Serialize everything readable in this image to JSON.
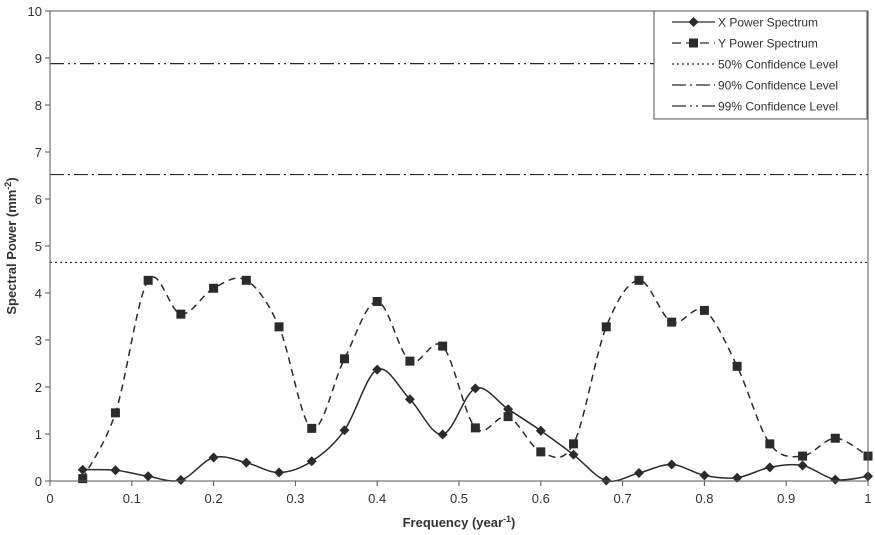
{
  "chart_data": {
    "type": "line",
    "title": "",
    "xlabel": "Frequency (year",
    "xlabel_sup": "-1",
    "xlabel_close": ")",
    "ylabel": "Spectral Power (mm",
    "ylabel_sup": "-2",
    "ylabel_close": ")",
    "xlim": [
      0,
      1
    ],
    "ylim": [
      0,
      10
    ],
    "x_ticks": [
      "0",
      "0.1",
      "0.2",
      "0.3",
      "0.4",
      "0.5",
      "0.6",
      "0.7",
      "0.8",
      "0.9",
      "1"
    ],
    "y_ticks": [
      "0",
      "1",
      "2",
      "3",
      "4",
      "5",
      "6",
      "7",
      "8",
      "9",
      "10"
    ],
    "grid": false,
    "legend_position": "top-right",
    "x": [
      0.04,
      0.08,
      0.12,
      0.16,
      0.2,
      0.24,
      0.28,
      0.32,
      0.36,
      0.4,
      0.44,
      0.48,
      0.52,
      0.56,
      0.6,
      0.64,
      0.68,
      0.72,
      0.76,
      0.8,
      0.84,
      0.88,
      0.92,
      0.96,
      1.0
    ],
    "series": [
      {
        "name": "X Power Spectrum",
        "style": "solid",
        "marker": "diamond",
        "values": [
          0.24,
          0.23,
          0.1,
          0.02,
          0.5,
          0.39,
          0.18,
          0.42,
          1.08,
          2.37,
          1.74,
          0.99,
          1.97,
          1.53,
          1.07,
          0.56,
          0.01,
          0.17,
          0.35,
          0.12,
          0.07,
          0.29,
          0.33,
          0.03,
          0.1
        ]
      },
      {
        "name": "Y Power Spectrum",
        "style": "dashed",
        "marker": "square",
        "values": [
          0.05,
          1.45,
          4.27,
          3.55,
          4.1,
          4.27,
          3.28,
          1.12,
          2.6,
          3.82,
          2.55,
          2.87,
          1.13,
          1.37,
          0.62,
          0.79,
          3.28,
          4.27,
          3.38,
          3.63,
          2.44,
          0.79,
          0.53,
          0.91,
          0.53
        ]
      }
    ],
    "reference_lines": [
      {
        "name": "50% Confidence Level",
        "style": "dotted",
        "value": 4.65
      },
      {
        "name": "90% Confidence Level",
        "style": "dash-dot",
        "value": 6.52
      },
      {
        "name": "99% Confidence Level",
        "style": "dash-dot-dot",
        "value": 8.88
      }
    ]
  },
  "colors": {
    "line": "#2b2b2b",
    "axis": "#555555",
    "text": "#333333"
  }
}
